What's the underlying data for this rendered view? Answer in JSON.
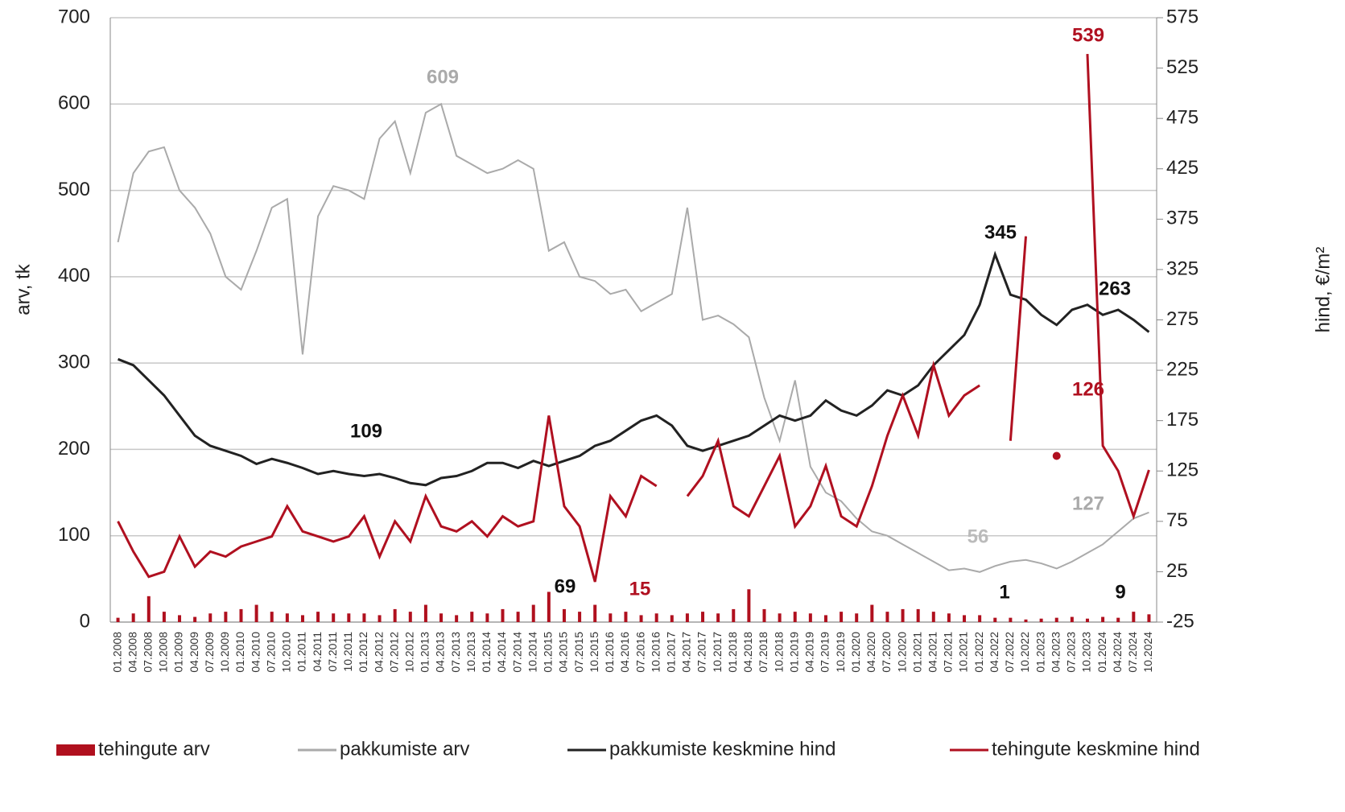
{
  "chart_data": {
    "type": "bar_line",
    "categories": [
      "01.2008",
      "04.2008",
      "07.2008",
      "10.2008",
      "01.2009",
      "04.2009",
      "07.2009",
      "10.2009",
      "01.2010",
      "04.2010",
      "07.2010",
      "10.2010",
      "01.2011",
      "04.2011",
      "07.2011",
      "10.2011",
      "01.2012",
      "04.2012",
      "07.2012",
      "10.2012",
      "01.2013",
      "04.2013",
      "07.2013",
      "10.2013",
      "01.2014",
      "04.2014",
      "07.2014",
      "10.2014",
      "01.2015",
      "04.2015",
      "07.2015",
      "10.2015",
      "01.2016",
      "04.2016",
      "07.2016",
      "10.2016",
      "01.2017",
      "04.2017",
      "07.2017",
      "10.2017",
      "01.2018",
      "04.2018",
      "07.2018",
      "10.2018",
      "01.2019",
      "04.2019",
      "07.2019",
      "10.2019",
      "01.2020",
      "04.2020",
      "07.2020",
      "10.2020",
      "01.2021",
      "04.2021",
      "07.2021",
      "10.2021",
      "01.2022",
      "04.2022",
      "07.2022",
      "10.2022",
      "01.2023",
      "04.2023",
      "07.2023",
      "10.2023",
      "01.2024",
      "04.2024",
      "07.2024",
      "10.2024"
    ],
    "series": [
      {
        "name": "tehingute arv",
        "kind": "bar",
        "color": "#b0101e",
        "values": [
          5,
          10,
          30,
          12,
          8,
          6,
          10,
          12,
          15,
          20,
          12,
          10,
          8,
          12,
          10,
          10,
          10,
          8,
          15,
          12,
          20,
          10,
          8,
          12,
          10,
          15,
          12,
          20,
          35,
          15,
          12,
          20,
          10,
          12,
          8,
          10,
          8,
          10,
          12,
          10,
          15,
          38,
          15,
          10,
          12,
          10,
          8,
          12,
          10,
          20,
          12,
          15,
          15,
          12,
          10,
          8,
          8,
          5,
          5,
          3,
          4,
          5,
          6,
          4,
          6,
          5,
          12,
          9
        ]
      },
      {
        "name": "pakkumiste arv",
        "kind": "line",
        "color": "#aaaaaa",
        "values": [
          440,
          520,
          545,
          550,
          500,
          480,
          450,
          400,
          385,
          430,
          480,
          490,
          310,
          470,
          505,
          500,
          490,
          560,
          580,
          520,
          590,
          600,
          540,
          530,
          520,
          525,
          535,
          525,
          430,
          440,
          400,
          395,
          380,
          385,
          360,
          370,
          380,
          480,
          350,
          355,
          345,
          330,
          260,
          210,
          280,
          180,
          150,
          140,
          120,
          105,
          100,
          90,
          80,
          70,
          60,
          62,
          58,
          65,
          70,
          72,
          68,
          62,
          70,
          80,
          90,
          105,
          120,
          127
        ]
      },
      {
        "name": "pakkumiste keskmine hind",
        "kind": "line",
        "axis": "y2",
        "color": "#222222",
        "values": [
          236,
          230,
          215,
          200,
          180,
          160,
          150,
          145,
          140,
          132,
          137,
          133,
          128,
          122,
          125,
          122,
          120,
          122,
          118,
          113,
          111,
          118,
          120,
          125,
          133,
          133,
          128,
          135,
          130,
          135,
          140,
          150,
          155,
          165,
          175,
          180,
          170,
          150,
          145,
          150,
          155,
          160,
          170,
          180,
          175,
          180,
          195,
          185,
          180,
          190,
          205,
          200,
          210,
          230,
          245,
          260,
          290,
          340,
          300,
          295,
          280,
          270,
          285,
          290,
          280,
          285,
          275,
          263
        ]
      },
      {
        "name": "tehingute keskmine hind",
        "kind": "line",
        "axis": "y2",
        "color": "#b01020",
        "values": [
          75,
          45,
          20,
          25,
          60,
          30,
          45,
          40,
          50,
          55,
          60,
          90,
          65,
          60,
          55,
          60,
          80,
          40,
          75,
          55,
          100,
          70,
          65,
          75,
          60,
          80,
          70,
          75,
          180,
          90,
          70,
          15,
          100,
          80,
          120,
          110,
          null,
          100,
          120,
          155,
          90,
          80,
          110,
          140,
          70,
          90,
          130,
          80,
          70,
          110,
          160,
          200,
          160,
          230,
          180,
          200,
          210,
          null,
          155,
          358,
          null,
          140,
          null,
          539,
          150,
          125,
          80,
          126
        ]
      }
    ],
    "ylabel": "arv, tk",
    "y2label": "hind, €/m²",
    "ylim": [
      0,
      700
    ],
    "yticks": [
      0,
      100,
      200,
      300,
      400,
      500,
      600,
      700
    ],
    "y2lim": [
      -25,
      575
    ],
    "y2ticks": [
      -25,
      25,
      75,
      125,
      175,
      225,
      275,
      325,
      375,
      425,
      475,
      525,
      575
    ],
    "grid": true,
    "annotations": [
      609,
      109,
      69,
      15,
      345,
      263,
      539,
      126,
      127,
      56,
      1,
      9
    ]
  }
}
